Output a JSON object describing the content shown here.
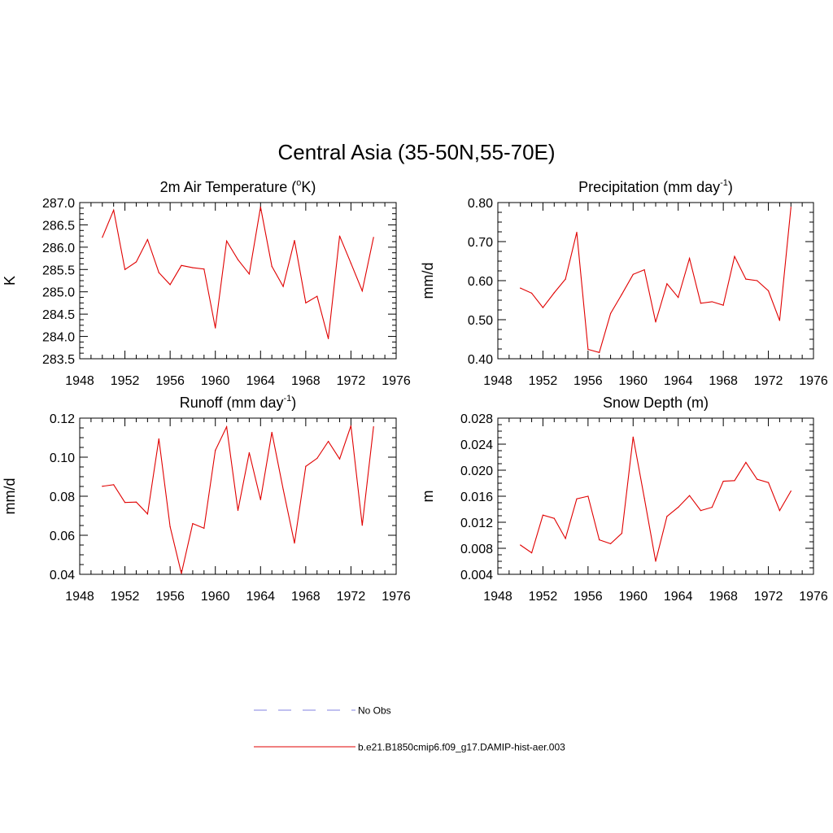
{
  "figure": {
    "title": "Central Asia (35-50N,55-70E)"
  },
  "legend": {
    "entries": [
      {
        "label": "No Obs",
        "color": "#9a9ae8",
        "style": "dashed"
      },
      {
        "label": "b.e21.B1850cmip6.f09_g17.DAMIP-hist-aer.003",
        "color": "#e00000",
        "style": "solid"
      }
    ]
  },
  "chart_data": [
    {
      "type": "line",
      "title": "2m Air Temperature (",
      "title_sup": "o",
      "title_after": "K)",
      "ylabel": "K",
      "xlim": [
        1948,
        1976
      ],
      "ylim": [
        283.5,
        287.0
      ],
      "xticks": [
        1948,
        1952,
        1956,
        1960,
        1964,
        1968,
        1972,
        1976
      ],
      "yticks": [
        "283.5",
        "284.0",
        "284.5",
        "285.0",
        "285.5",
        "286.0",
        "286.5",
        "287.0"
      ],
      "grid": false,
      "series": [
        {
          "color": "#e00000",
          "x": [
            1950,
            1951,
            1952,
            1953,
            1954,
            1955,
            1956,
            1957,
            1958,
            1959,
            1960,
            1961,
            1962,
            1963,
            1964,
            1965,
            1966,
            1967,
            1968,
            1969,
            1970,
            1971,
            1972,
            1973,
            1974
          ],
          "y": [
            286.22,
            286.83,
            285.5,
            285.67,
            286.17,
            285.43,
            285.16,
            285.59,
            285.54,
            285.51,
            284.19,
            286.14,
            285.72,
            285.4,
            286.9,
            285.57,
            285.12,
            286.15,
            284.75,
            284.9,
            283.95,
            286.25,
            285.64,
            285.02,
            286.22
          ]
        }
      ]
    },
    {
      "type": "line",
      "title": "Precipitation (mm day",
      "title_sup": "-1",
      "title_after": ")",
      "ylabel": "mm/d",
      "xlim": [
        1948,
        1976
      ],
      "ylim": [
        0.4,
        0.8
      ],
      "xticks": [
        1948,
        1952,
        1956,
        1960,
        1964,
        1968,
        1972,
        1976
      ],
      "yticks": [
        "0.40",
        "0.50",
        "0.60",
        "0.70",
        "0.80"
      ],
      "grid": false,
      "series": [
        {
          "color": "#e00000",
          "x": [
            1950,
            1951,
            1952,
            1953,
            1954,
            1955,
            1956,
            1957,
            1958,
            1959,
            1960,
            1961,
            1962,
            1963,
            1964,
            1965,
            1966,
            1967,
            1968,
            1969,
            1970,
            1971,
            1972,
            1973,
            1974
          ],
          "y": [
            0.581,
            0.568,
            0.531,
            0.569,
            0.604,
            0.724,
            0.424,
            0.416,
            0.516,
            0.565,
            0.616,
            0.628,
            0.494,
            0.592,
            0.557,
            0.657,
            0.542,
            0.546,
            0.537,
            0.662,
            0.604,
            0.6,
            0.574,
            0.498,
            0.788
          ]
        }
      ]
    },
    {
      "type": "line",
      "title": "Runoff (mm day",
      "title_sup": "-1",
      "title_after": ")",
      "ylabel": "mm/d",
      "xlim": [
        1948,
        1976
      ],
      "ylim": [
        0.04,
        0.12
      ],
      "xticks": [
        1948,
        1952,
        1956,
        1960,
        1964,
        1968,
        1972,
        1976
      ],
      "yticks": [
        "0.04",
        "0.06",
        "0.08",
        "0.10",
        "0.12"
      ],
      "grid": false,
      "series": [
        {
          "color": "#e00000",
          "x": [
            1950,
            1951,
            1952,
            1953,
            1954,
            1955,
            1956,
            1957,
            1958,
            1959,
            1960,
            1961,
            1962,
            1963,
            1964,
            1965,
            1966,
            1967,
            1968,
            1969,
            1970,
            1971,
            1972,
            1973,
            1974
          ],
          "y": [
            0.0851,
            0.0859,
            0.0768,
            0.077,
            0.0709,
            0.1094,
            0.0644,
            0.0404,
            0.066,
            0.0636,
            0.1035,
            0.1156,
            0.0727,
            0.1023,
            0.0782,
            0.1127,
            0.0836,
            0.056,
            0.0953,
            0.0994,
            0.1081,
            0.0991,
            0.1161,
            0.0651,
            0.1156
          ]
        }
      ]
    },
    {
      "type": "line",
      "title": "Snow Depth (m)",
      "title_sup": "",
      "title_after": "",
      "ylabel": "m",
      "xlim": [
        1948,
        1976
      ],
      "ylim": [
        0.004,
        0.028
      ],
      "xticks": [
        1948,
        1952,
        1956,
        1960,
        1964,
        1968,
        1972,
        1976
      ],
      "yticks": [
        "0.004",
        "0.008",
        "0.012",
        "0.016",
        "0.020",
        "0.024",
        "0.028"
      ],
      "grid": false,
      "series": [
        {
          "color": "#e00000",
          "x": [
            1950,
            1951,
            1952,
            1953,
            1954,
            1955,
            1956,
            1957,
            1958,
            1959,
            1960,
            1961,
            1962,
            1963,
            1964,
            1965,
            1966,
            1967,
            1968,
            1969,
            1970,
            1971,
            1972,
            1973,
            1974
          ],
          "y": [
            0.0085,
            0.0073,
            0.0131,
            0.0126,
            0.0095,
            0.0156,
            0.016,
            0.0093,
            0.0087,
            0.0103,
            0.0251,
            0.0157,
            0.006,
            0.0129,
            0.0143,
            0.0161,
            0.0138,
            0.0143,
            0.0183,
            0.0184,
            0.0212,
            0.0186,
            0.0181,
            0.0138,
            0.0168
          ]
        }
      ]
    }
  ]
}
